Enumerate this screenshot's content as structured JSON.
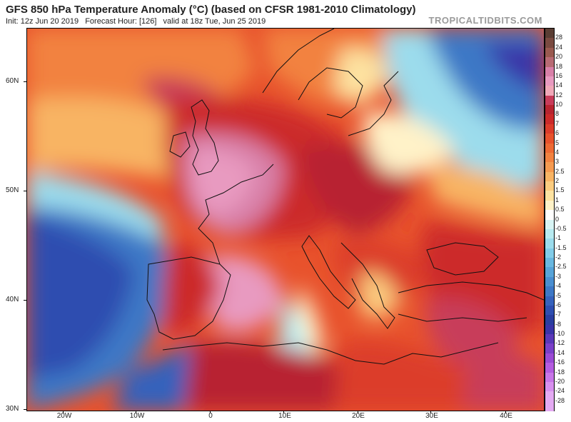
{
  "header": {
    "title": "GFS 850 hPa Temperature Anomaly (°C) (based on CFSR 1981-2010 Climatology)",
    "init": "Init: 12z Jun 20 2019",
    "forecast_hour": "Forecast Hour: [126]",
    "valid": "valid at 18z Tue, Jun 25 2019",
    "brand": "TROPICALTIDBITS.COM"
  },
  "map": {
    "lat_labels": [
      "60N",
      "50N",
      "40N",
      "30N"
    ],
    "lon_labels": [
      "20W",
      "10W",
      "0",
      "10E",
      "20E",
      "30E",
      "40E"
    ]
  },
  "colorbar": {
    "labels": [
      "28",
      "24",
      "20",
      "18",
      "16",
      "14",
      "12",
      "10",
      "8",
      "7",
      "6",
      "5",
      "4",
      "3",
      "2.5",
      "2",
      "1.5",
      "1",
      "0.5",
      "0",
      "-0.5",
      "-1",
      "-1.5",
      "-2",
      "-2.5",
      "-3",
      "-4",
      "-5",
      "-6",
      "-7",
      "-8",
      "-10",
      "-12",
      "-14",
      "-16",
      "-18",
      "-20",
      "-24",
      "-28"
    ],
    "colors": [
      "#5a3d33",
      "#7a4a40",
      "#9a5a50",
      "#b86b74",
      "#d880a8",
      "#e89ac0",
      "#f0a8b8",
      "#c83c5a",
      "#b82430",
      "#cc2a2a",
      "#dc3c2a",
      "#e8522c",
      "#ee6a34",
      "#f28240",
      "#f59a50",
      "#f8b464",
      "#fbcc80",
      "#fde2a0",
      "#fff2c8",
      "#ffffff",
      "#d8f4f4",
      "#b8eaf0",
      "#9cdcec",
      "#82cce8",
      "#6ab8e0",
      "#58a4d8",
      "#4a8ed0",
      "#3e78c6",
      "#3662bc",
      "#2e4eb0",
      "#2a3ea0",
      "#3a34a8",
      "#5a38b8",
      "#7a40c8",
      "#9a4ad4",
      "#b45ce0",
      "#c876e8",
      "#d890ee",
      "#e4aaf2"
    ]
  }
}
